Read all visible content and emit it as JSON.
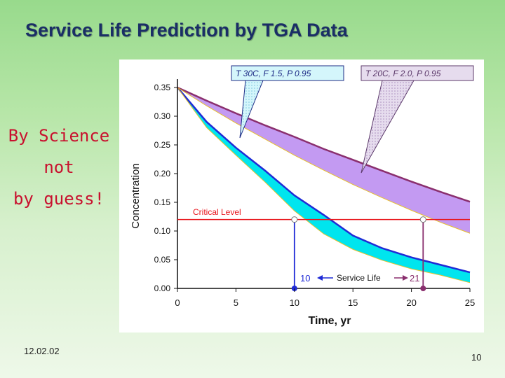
{
  "slide": {
    "title": "Service Life Prediction by TGA Data",
    "side_note": [
      "By Science",
      "not",
      "by guess!"
    ],
    "date": "12.02.02",
    "page_number": "10"
  },
  "chart_data": {
    "type": "area",
    "ylabel": "Concentration",
    "xlabel": "Time, yr",
    "xlim": [
      0,
      25
    ],
    "ylim": [
      0,
      0.35
    ],
    "xticks": [
      "0",
      "5",
      "10",
      "15",
      "20",
      "25"
    ],
    "yticks": [
      "0.00",
      "0.05",
      "0.10",
      "0.15",
      "0.20",
      "0.25",
      "0.30",
      "0.35"
    ],
    "series": [
      {
        "name": "T 30C, F 1.5, P 0.95",
        "color_fill": "#00e5ee",
        "color_line": "#1f2bd6",
        "x": [
          0,
          2.5,
          5,
          7.5,
          10,
          12.5,
          15,
          17.5,
          20,
          22.5,
          25
        ],
        "upper": [
          0.35,
          0.29,
          0.245,
          0.205,
          0.162,
          0.128,
          0.092,
          0.07,
          0.054,
          0.041,
          0.028
        ],
        "lower": [
          0.35,
          0.28,
          0.232,
          0.185,
          0.135,
          0.095,
          0.068,
          0.049,
          0.034,
          0.023,
          0.01
        ]
      },
      {
        "name": "T 20C, F 2.0, P 0.95",
        "color_fill": "#c39af2",
        "color_line": "#8a2f6e",
        "x": [
          0,
          2.5,
          5,
          7.5,
          10,
          12.5,
          15,
          17.5,
          20,
          22.5,
          25
        ],
        "upper": [
          0.35,
          0.327,
          0.305,
          0.284,
          0.264,
          0.243,
          0.224,
          0.205,
          0.186,
          0.168,
          0.151
        ],
        "lower": [
          0.35,
          0.318,
          0.288,
          0.26,
          0.232,
          0.206,
          0.181,
          0.158,
          0.136,
          0.115,
          0.096
        ]
      }
    ],
    "critical_level": {
      "label": "Critical Level",
      "value": 0.12,
      "color": "#e8141b"
    },
    "service_life": {
      "label": "Service Life",
      "values": [
        10,
        21
      ],
      "value_labels": [
        "10",
        "21"
      ]
    },
    "callouts": [
      "T 30C, F 1.5, P 0.95",
      "T 20C, F 2.0, P 0.95"
    ]
  }
}
